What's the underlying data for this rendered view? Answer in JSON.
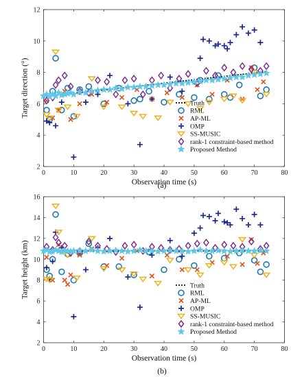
{
  "figure": {
    "captions": [
      "(a)",
      "(b)"
    ]
  },
  "colors": {
    "truth": "#111111",
    "rml": "#1f77b4",
    "apml": "#d95319",
    "omp": "#1a2a8c",
    "ssmusic": "#edb120",
    "rank1": "#7e2f8e",
    "proposed": "#5fc8e8"
  },
  "chart_data": [
    {
      "type": "scatter",
      "xlabel": "Observation time (s)",
      "ylabel": "Target direction (°)",
      "xlim": [
        0,
        80
      ],
      "ylim": [
        2,
        12
      ],
      "xticks": [
        0,
        10,
        20,
        30,
        40,
        50,
        60,
        70,
        80
      ],
      "yticks": [
        2,
        4,
        6,
        8,
        10,
        12
      ],
      "grid": false,
      "legend_position": "bottom-right",
      "truth": {
        "name": "Truth",
        "x": [
          0,
          74
        ],
        "y": [
          6.45,
          8.05
        ]
      },
      "series": [
        {
          "name": "RML",
          "marker": "circle-open",
          "x": [
            1,
            2,
            3,
            4,
            6,
            8,
            10,
            12,
            15,
            20,
            25,
            30,
            32,
            35,
            40,
            45,
            50,
            52,
            55,
            58,
            60,
            62,
            65,
            70,
            72,
            74
          ],
          "y": [
            5.6,
            5.0,
            6.8,
            8.9,
            5.6,
            7.0,
            5.2,
            6.9,
            7.1,
            6.0,
            7.0,
            6.2,
            6.3,
            6.8,
            6.1,
            6.6,
            6.4,
            7.5,
            6.3,
            7.8,
            6.6,
            6.4,
            7.2,
            8.3,
            6.5,
            6.9
          ]
        },
        {
          "name": "AP-ML",
          "marker": "x",
          "x": [
            1,
            3,
            5,
            7,
            9,
            12,
            16,
            21,
            26,
            31,
            36,
            41,
            46,
            51,
            56,
            61,
            66,
            69,
            71,
            73
          ],
          "y": [
            6.2,
            5.1,
            5.6,
            6.8,
            5.0,
            6.0,
            6.6,
            6.1,
            6.4,
            6.9,
            6.3,
            6.7,
            6.4,
            7.2,
            6.6,
            7.5,
            6.3,
            8.3,
            6.9,
            7.4
          ]
        },
        {
          "name": "OMP",
          "marker": "plus",
          "x": [
            1,
            2,
            4,
            6,
            10,
            14,
            18,
            22,
            28,
            32,
            36,
            42,
            46,
            50,
            52,
            53,
            55,
            57,
            58,
            60,
            61,
            62,
            64,
            66,
            68,
            70,
            72
          ],
          "y": [
            4.9,
            4.8,
            4.6,
            6.1,
            2.6,
            6.1,
            6.6,
            7.8,
            6.0,
            3.4,
            6.3,
            7.7,
            6.8,
            7.4,
            8.9,
            10.1,
            10.0,
            9.7,
            9.8,
            9.7,
            9.5,
            9.9,
            10.4,
            10.9,
            10.5,
            10.7,
            9.9
          ]
        },
        {
          "name": "SS-MUSIC",
          "marker": "triangle-down",
          "x": [
            1,
            2,
            4,
            5,
            8,
            11,
            16,
            20,
            26,
            30,
            33,
            38,
            42,
            48,
            52,
            55,
            60,
            63,
            66,
            70,
            74
          ],
          "y": [
            5.3,
            5.1,
            9.3,
            5.6,
            5.8,
            5.2,
            7.6,
            5.8,
            5.8,
            5.4,
            5.2,
            5.1,
            6.1,
            6.0,
            5.7,
            6.1,
            6.3,
            6.5,
            6.2,
            8.0,
            6.6
          ]
        },
        {
          "name": "rank-1 constraint-based method",
          "marker": "diamond-open",
          "x": [
            1,
            3,
            4,
            5,
            7,
            9,
            12,
            15,
            18,
            21,
            24,
            27,
            30,
            33,
            36,
            39,
            42,
            45,
            48,
            51,
            54,
            57,
            60,
            63,
            66,
            69,
            72,
            74
          ],
          "y": [
            6.2,
            6.4,
            7.2,
            7.5,
            7.8,
            7.1,
            6.8,
            6.7,
            7.5,
            7.4,
            6.6,
            7.5,
            7.6,
            6.6,
            7.5,
            7.8,
            7.0,
            7.6,
            7.9,
            7.3,
            8.1,
            7.8,
            8.3,
            8.0,
            8.4,
            8.2,
            8.1,
            8.4
          ]
        },
        {
          "name": "Proposed Method",
          "marker": "star",
          "x": [
            0,
            1,
            2,
            3,
            4,
            5,
            6,
            7,
            8,
            9,
            10,
            12,
            14,
            16,
            18,
            20,
            22,
            24,
            26,
            28,
            30,
            32,
            34,
            36,
            38,
            40,
            42,
            44,
            46,
            48,
            50,
            52,
            54,
            56,
            58,
            60,
            62,
            64,
            66,
            68,
            70,
            72,
            74
          ],
          "y": [
            6.5,
            6.6,
            6.45,
            6.6,
            6.5,
            6.7,
            6.55,
            6.6,
            6.65,
            6.7,
            6.6,
            6.75,
            6.7,
            6.8,
            6.85,
            6.9,
            6.9,
            7.0,
            6.95,
            7.05,
            7.05,
            7.1,
            7.1,
            7.15,
            7.2,
            7.2,
            7.25,
            7.3,
            7.3,
            7.35,
            7.4,
            7.45,
            7.5,
            7.5,
            7.55,
            7.6,
            7.65,
            7.7,
            7.7,
            7.8,
            7.85,
            7.9,
            7.95
          ]
        }
      ]
    },
    {
      "type": "scatter",
      "xlabel": "Observation time (s)",
      "ylabel": "Target height (km)",
      "xlim": [
        0,
        80
      ],
      "ylim": [
        2,
        16
      ],
      "xticks": [
        0,
        10,
        20,
        30,
        40,
        50,
        60,
        70,
        80
      ],
      "yticks": [
        2,
        4,
        6,
        8,
        10,
        12,
        14,
        16
      ],
      "grid": false,
      "legend_position": "bottom-right",
      "truth": {
        "name": "Truth",
        "x": [
          0,
          74
        ],
        "y": [
          10.8,
          10.8
        ]
      },
      "series": [
        {
          "name": "RML",
          "marker": "circle-open",
          "x": [
            1,
            2,
            3,
            4,
            6,
            8,
            10,
            12,
            15,
            20,
            25,
            30,
            35,
            40,
            45,
            50,
            55,
            60,
            65,
            70,
            72,
            74
          ],
          "y": [
            9.0,
            8.4,
            10.0,
            14.3,
            8.8,
            10.5,
            8.0,
            10.6,
            11.5,
            9.3,
            9.3,
            8.5,
            10.7,
            9.0,
            10.0,
            9.4,
            10.3,
            10.1,
            10.6,
            9.9,
            8.8,
            9.5
          ]
        },
        {
          "name": "AP-ML",
          "marker": "x",
          "x": [
            1,
            3,
            5,
            7,
            8,
            9,
            12,
            16,
            21,
            26,
            31,
            36,
            41,
            46,
            51,
            56,
            61,
            66,
            69,
            71,
            73
          ],
          "y": [
            10.2,
            8.0,
            11.4,
            8.0,
            7.6,
            8.5,
            10.4,
            11.0,
            9.4,
            10.1,
            10.8,
            8.4,
            10.4,
            9.0,
            9.0,
            9.7,
            10.3,
            9.5,
            11.9,
            9.6,
            10.6
          ]
        },
        {
          "name": "OMP",
          "marker": "plus",
          "x": [
            1,
            2,
            3,
            4,
            6,
            10,
            14,
            18,
            22,
            28,
            32,
            36,
            42,
            46,
            50,
            52,
            53,
            55,
            57,
            58,
            60,
            61,
            62,
            64,
            66,
            68,
            70,
            72
          ],
          "y": [
            9.2,
            8.1,
            9.8,
            12.6,
            11.1,
            4.5,
            9.0,
            11.1,
            12.0,
            8.3,
            5.4,
            10.4,
            11.8,
            10.3,
            12.5,
            13.0,
            14.2,
            14.1,
            13.7,
            14.4,
            13.6,
            13.5,
            13.3,
            14.8,
            13.9,
            13.3,
            14.3,
            13.3
          ]
        },
        {
          "name": "SS-MUSIC",
          "marker": "triangle-down",
          "x": [
            1,
            2,
            4,
            5,
            8,
            11,
            16,
            20,
            26,
            30,
            33,
            38,
            42,
            48,
            52,
            55,
            60,
            63,
            66,
            70,
            74
          ],
          "y": [
            8.1,
            8.0,
            15.1,
            12.6,
            10.4,
            8.2,
            12.0,
            9.1,
            9.0,
            8.6,
            8.1,
            7.7,
            9.9,
            9.0,
            8.5,
            9.4,
            9.7,
            9.3,
            11.9,
            10.4,
            8.5
          ]
        },
        {
          "name": "rank-1 constraint-based method",
          "marker": "diamond-open",
          "x": [
            1,
            3,
            4,
            5,
            7,
            9,
            12,
            15,
            18,
            21,
            24,
            27,
            30,
            33,
            36,
            39,
            42,
            45,
            48,
            51,
            54,
            57,
            60,
            63,
            66,
            69,
            72,
            74
          ],
          "y": [
            11.2,
            10.9,
            12.1,
            11.6,
            11.3,
            10.6,
            10.8,
            11.7,
            11.3,
            11.0,
            10.7,
            11.3,
            11.4,
            10.8,
            11.2,
            11.1,
            10.9,
            11.0,
            11.3,
            11.5,
            11.6,
            11.1,
            11.4,
            11.3,
            11.2,
            11.7,
            11.0,
            11.3
          ]
        },
        {
          "name": "Proposed Method",
          "marker": "star",
          "x": [
            0,
            1,
            2,
            3,
            4,
            5,
            6,
            7,
            8,
            9,
            10,
            12,
            14,
            16,
            18,
            20,
            22,
            24,
            26,
            28,
            30,
            32,
            34,
            36,
            38,
            40,
            42,
            44,
            46,
            48,
            50,
            52,
            54,
            56,
            58,
            60,
            62,
            64,
            66,
            68,
            70,
            72,
            74
          ],
          "y": [
            10.8,
            10.9,
            10.7,
            10.8,
            10.9,
            10.8,
            10.7,
            10.85,
            10.8,
            10.75,
            10.8,
            10.85,
            10.8,
            10.9,
            10.8,
            10.75,
            10.8,
            10.85,
            10.8,
            10.75,
            10.8,
            10.9,
            10.8,
            10.8,
            10.75,
            10.8,
            10.85,
            10.8,
            10.8,
            10.75,
            10.8,
            10.9,
            10.8,
            10.8,
            10.85,
            10.8,
            10.75,
            10.8,
            10.85,
            10.8,
            10.8,
            10.85,
            10.8
          ]
        }
      ]
    }
  ]
}
